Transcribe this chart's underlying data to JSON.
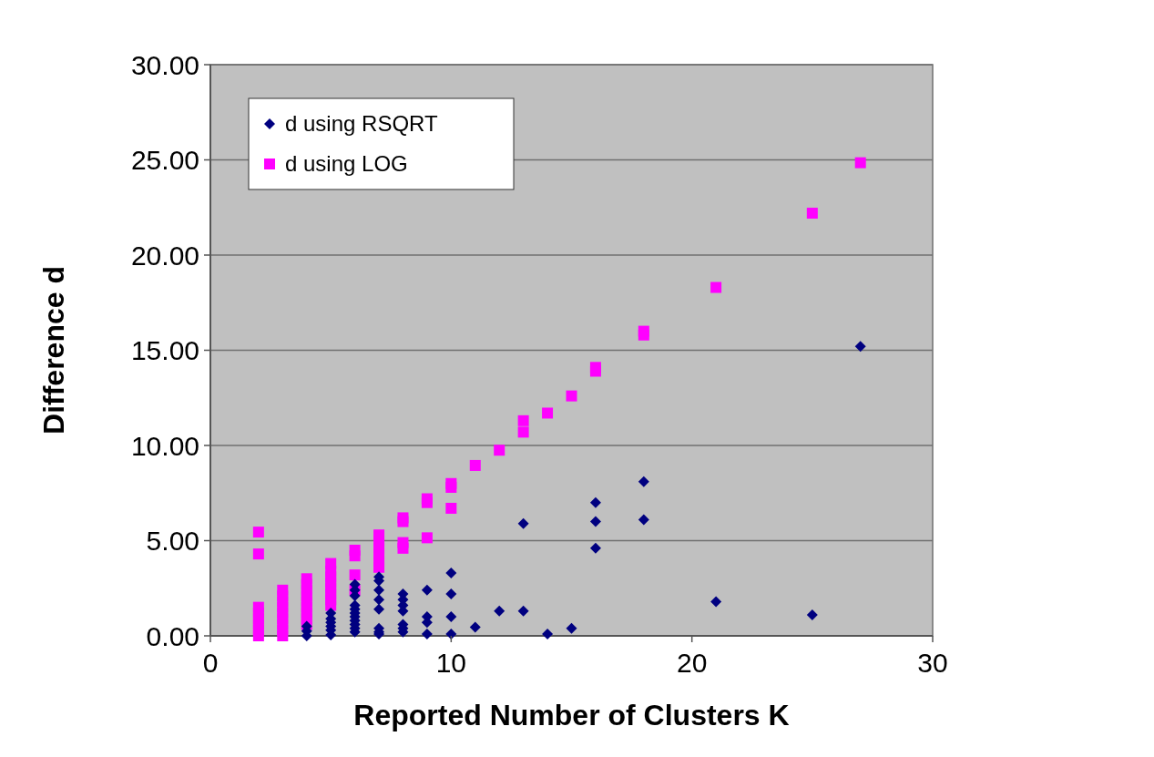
{
  "chart_data": {
    "type": "scatter",
    "xlabel": "Reported Number of Clusters K",
    "ylabel": "Difference d",
    "xlim": [
      0,
      30
    ],
    "xticks": [
      0,
      10,
      20,
      30
    ],
    "ylim": [
      0,
      30
    ],
    "yticks": [
      {
        "value": 0,
        "label": "0.00"
      },
      {
        "value": 5,
        "label": "5.00"
      },
      {
        "value": 10,
        "label": "10.00"
      },
      {
        "value": 15,
        "label": "15.00"
      },
      {
        "value": 20,
        "label": "20.00"
      },
      {
        "value": 25,
        "label": "25.00"
      },
      {
        "value": 30,
        "label": "30.00"
      }
    ],
    "grid": "y",
    "legend": "top left",
    "series": [
      {
        "name": "d using RSQRT",
        "color": "#000080",
        "marker": "diamond",
        "x": [
          4,
          4,
          4,
          5,
          5,
          5,
          5,
          5,
          5,
          6,
          6,
          6,
          6,
          6,
          6,
          6,
          6,
          6,
          6,
          6,
          7,
          7,
          7,
          7,
          7,
          7,
          7,
          7,
          8,
          8,
          8,
          8,
          8,
          8,
          8,
          9,
          9,
          9,
          9,
          10,
          10,
          10,
          10,
          11,
          12,
          13,
          13,
          14,
          15,
          16,
          16,
          16,
          18,
          18,
          21,
          25,
          27
        ],
        "values": [
          0,
          0.25,
          0.5,
          0.05,
          0.3,
          0.5,
          0.7,
          0.9,
          1.2,
          0.2,
          0.4,
          0.6,
          0.8,
          1.0,
          1.2,
          1.4,
          1.6,
          2.1,
          2.4,
          2.7,
          3.1,
          2.9,
          2.4,
          1.9,
          1.4,
          0.4,
          0.2,
          0.1,
          2.2,
          1.9,
          1.6,
          1.3,
          0.6,
          0.4,
          0.2,
          2.4,
          1.0,
          0.7,
          0.1,
          3.3,
          2.2,
          1.0,
          0.1,
          0.45,
          1.3,
          5.9,
          1.3,
          0.1,
          0.4,
          7.0,
          6.0,
          4.6,
          8.1,
          6.1,
          1.8,
          1.1,
          15.2
        ]
      },
      {
        "name": "d using LOG",
        "color": "#ff00ff",
        "marker": "square",
        "x": [
          2,
          2,
          2,
          2,
          2,
          2,
          2,
          2,
          3,
          3,
          3,
          3,
          3,
          3,
          3,
          3,
          3,
          4,
          4,
          4,
          4,
          4,
          4,
          4,
          4,
          4,
          5,
          5,
          5,
          5,
          5,
          5,
          5,
          5,
          6,
          6,
          6,
          6,
          7,
          7,
          7,
          7,
          7,
          7,
          8,
          8,
          8,
          8,
          9,
          9,
          9,
          10,
          10,
          10,
          11,
          12,
          13,
          13,
          14,
          15,
          16,
          16,
          18,
          18,
          21,
          25,
          27
        ],
        "values": [
          5.45,
          4.3,
          0,
          0.3,
          0.6,
          0.9,
          1.2,
          1.5,
          0,
          0.3,
          0.6,
          0.9,
          1.2,
          1.5,
          1.8,
          2.1,
          2.4,
          0.6,
          0.9,
          1.2,
          1.5,
          1.8,
          2.1,
          2.4,
          2.7,
          3.0,
          1.6,
          1.9,
          2.2,
          2.5,
          2.8,
          3.1,
          3.4,
          3.8,
          2.4,
          3.2,
          4.2,
          4.5,
          3.6,
          3.9,
          4.3,
          4.6,
          5.0,
          5.3,
          4.6,
          4.9,
          6.0,
          6.2,
          5.15,
          7.0,
          7.2,
          6.7,
          7.8,
          8.0,
          8.95,
          9.75,
          10.7,
          11.3,
          11.7,
          12.6,
          13.9,
          14.1,
          15.8,
          16.0,
          18.3,
          22.2,
          24.85
        ]
      }
    ]
  }
}
